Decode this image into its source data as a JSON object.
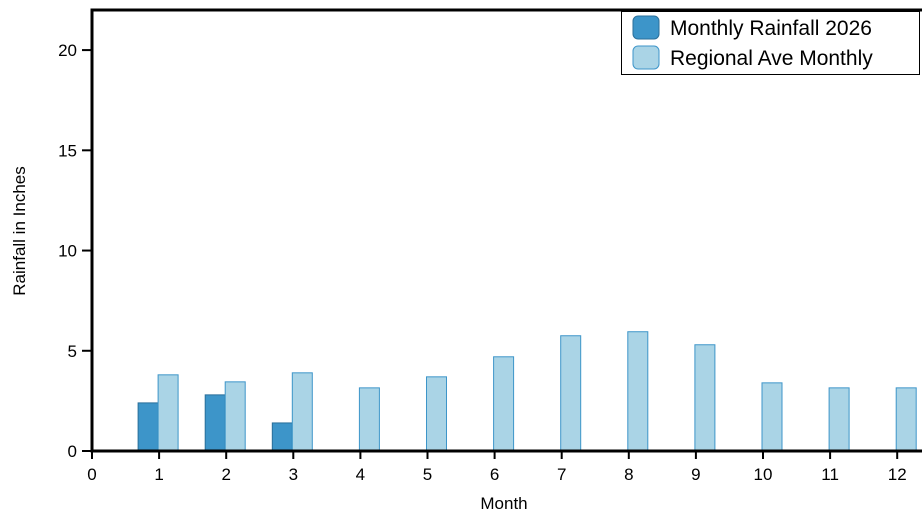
{
  "chart_data": {
    "type": "bar",
    "title": "",
    "xlabel": "Month",
    "ylabel": "Rainfall in Inches",
    "x": [
      1,
      2,
      3,
      4,
      5,
      6,
      7,
      8,
      9,
      10,
      11,
      12
    ],
    "x_ticks": [
      0,
      1,
      2,
      3,
      4,
      5,
      6,
      7,
      8,
      9,
      10,
      11,
      12
    ],
    "y_ticks": [
      0,
      5,
      10,
      15,
      20
    ],
    "xlim": [
      0,
      12.3
    ],
    "ylim": [
      0,
      22
    ],
    "grid": false,
    "legend_position": "top-right",
    "series": [
      {
        "name": "Monthly Rainfall 2026",
        "color": "#3d95c9",
        "values": [
          2.4,
          2.8,
          1.4,
          null,
          null,
          null,
          null,
          null,
          null,
          null,
          null,
          null
        ]
      },
      {
        "name": "Regional Ave Monthly",
        "color": "#aad4e6",
        "values": [
          3.8,
          3.45,
          3.9,
          3.15,
          3.7,
          4.7,
          5.75,
          5.95,
          5.3,
          3.4,
          3.15,
          3.15
        ]
      }
    ]
  }
}
